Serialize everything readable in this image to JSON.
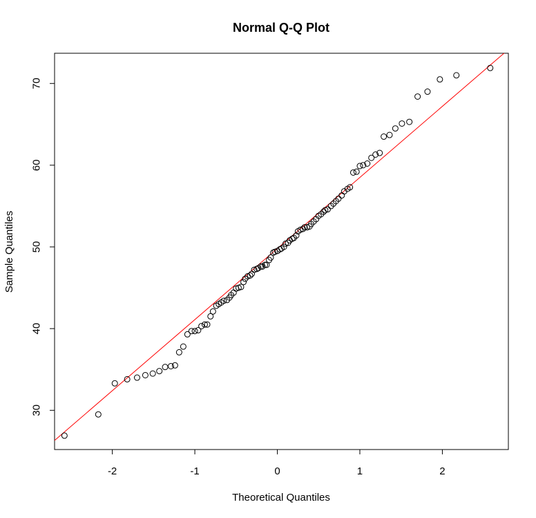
{
  "chart_data": {
    "type": "scatter",
    "title": "Normal Q-Q Plot",
    "xlabel": "Theoretical Quantiles",
    "ylabel": "Sample Quantiles",
    "xlim": [
      -2.7,
      2.8
    ],
    "ylim": [
      25.2,
      73.7
    ],
    "xticks": [
      -2,
      -1,
      0,
      1,
      2
    ],
    "yticks": [
      30,
      40,
      50,
      60,
      70
    ],
    "xtick_labels": [
      "-2",
      "-1",
      "0",
      "1",
      "2"
    ],
    "ytick_labels": [
      "30",
      "40",
      "50",
      "60",
      "70"
    ],
    "grid": false,
    "point_color": "#000000",
    "line_color": "#ff0000",
    "reference_line": {
      "intercept": 49.8,
      "slope": 8.7
    },
    "points": [
      [
        -2.58,
        26.9
      ],
      [
        -2.17,
        29.5
      ],
      [
        -1.97,
        33.3
      ],
      [
        -1.82,
        33.8
      ],
      [
        -1.7,
        34.0
      ],
      [
        -1.6,
        34.3
      ],
      [
        -1.51,
        34.5
      ],
      [
        -1.43,
        34.8
      ],
      [
        -1.36,
        35.3
      ],
      [
        -1.29,
        35.4
      ],
      [
        -1.24,
        35.5
      ],
      [
        -1.19,
        37.1
      ],
      [
        -1.14,
        37.8
      ],
      [
        -1.09,
        39.3
      ],
      [
        -1.04,
        39.7
      ],
      [
        -1.0,
        39.7
      ],
      [
        -0.96,
        39.8
      ],
      [
        -0.92,
        40.3
      ],
      [
        -0.88,
        40.5
      ],
      [
        -0.85,
        40.5
      ],
      [
        -0.81,
        41.5
      ],
      [
        -0.78,
        42.1
      ],
      [
        -0.74,
        42.8
      ],
      [
        -0.71,
        43.0
      ],
      [
        -0.68,
        43.2
      ],
      [
        -0.65,
        43.4
      ],
      [
        -0.61,
        43.5
      ],
      [
        -0.58,
        43.8
      ],
      [
        -0.56,
        44.1
      ],
      [
        -0.53,
        44.4
      ],
      [
        -0.5,
        44.9
      ],
      [
        -0.47,
        45.0
      ],
      [
        -0.44,
        45.1
      ],
      [
        -0.41,
        45.7
      ],
      [
        -0.39,
        46.1
      ],
      [
        -0.36,
        46.4
      ],
      [
        -0.33,
        46.5
      ],
      [
        -0.31,
        46.7
      ],
      [
        -0.28,
        47.2
      ],
      [
        -0.25,
        47.3
      ],
      [
        -0.23,
        47.4
      ],
      [
        -0.2,
        47.6
      ],
      [
        -0.18,
        47.6
      ],
      [
        -0.15,
        47.8
      ],
      [
        -0.13,
        47.8
      ],
      [
        -0.1,
        48.4
      ],
      [
        -0.08,
        48.7
      ],
      [
        -0.05,
        49.3
      ],
      [
        -0.03,
        49.4
      ],
      [
        0.0,
        49.5
      ],
      [
        0.03,
        49.7
      ],
      [
        0.05,
        49.8
      ],
      [
        0.08,
        50.0
      ],
      [
        0.1,
        50.4
      ],
      [
        0.13,
        50.5
      ],
      [
        0.15,
        50.8
      ],
      [
        0.18,
        51.0
      ],
      [
        0.2,
        51.1
      ],
      [
        0.23,
        51.4
      ],
      [
        0.25,
        51.9
      ],
      [
        0.28,
        52.1
      ],
      [
        0.31,
        52.2
      ],
      [
        0.33,
        52.4
      ],
      [
        0.36,
        52.4
      ],
      [
        0.39,
        52.5
      ],
      [
        0.41,
        52.8
      ],
      [
        0.44,
        53.1
      ],
      [
        0.47,
        53.4
      ],
      [
        0.5,
        53.8
      ],
      [
        0.53,
        54.0
      ],
      [
        0.56,
        54.3
      ],
      [
        0.58,
        54.5
      ],
      [
        0.61,
        54.6
      ],
      [
        0.65,
        55.0
      ],
      [
        0.68,
        55.3
      ],
      [
        0.71,
        55.6
      ],
      [
        0.74,
        55.9
      ],
      [
        0.78,
        56.3
      ],
      [
        0.81,
        56.8
      ],
      [
        0.85,
        57.1
      ],
      [
        0.88,
        57.3
      ],
      [
        0.92,
        59.1
      ],
      [
        0.96,
        59.2
      ],
      [
        1.0,
        59.9
      ],
      [
        1.04,
        60.0
      ],
      [
        1.09,
        60.2
      ],
      [
        1.14,
        60.9
      ],
      [
        1.19,
        61.3
      ],
      [
        1.24,
        61.5
      ],
      [
        1.29,
        63.5
      ],
      [
        1.36,
        63.7
      ],
      [
        1.43,
        64.5
      ],
      [
        1.51,
        65.1
      ],
      [
        1.6,
        65.3
      ],
      [
        1.7,
        68.4
      ],
      [
        1.82,
        69.0
      ],
      [
        1.97,
        70.5
      ],
      [
        2.17,
        71.0
      ],
      [
        2.58,
        71.9
      ]
    ]
  }
}
